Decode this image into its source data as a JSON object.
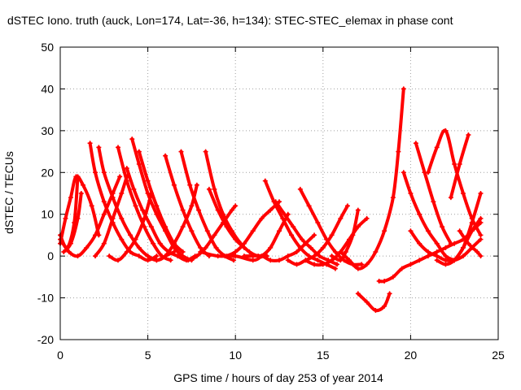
{
  "chart_data": {
    "type": "line",
    "title": "dSTEC Iono. truth (auck, Lon=174, Lat=-36, h=134): STEC-STEC_elemax in phase cont",
    "xlabel": "GPS time / hours of day 253 of year 2014",
    "ylabel": "dSTEC  / TECUs",
    "xlim": [
      0,
      25
    ],
    "ylim": [
      -20,
      50
    ],
    "xticks": [
      0,
      5,
      10,
      15,
      20,
      25
    ],
    "yticks": [
      -20,
      -10,
      0,
      10,
      20,
      30,
      40,
      50
    ],
    "grid": true,
    "legend": "none",
    "color": "#ff0000",
    "series": [
      {
        "x": [
          0.0,
          0.4,
          0.8,
          1.0
        ],
        "y": [
          5,
          2,
          8,
          19
        ]
      },
      {
        "x": [
          0.0,
          0.3,
          0.6,
          0.9,
          1.3,
          1.8,
          2.2
        ],
        "y": [
          3,
          9,
          14,
          19,
          17,
          12,
          5
        ]
      },
      {
        "x": [
          0.0,
          0.5,
          1.0,
          1.5,
          2.0,
          2.5,
          3.0,
          3.4
        ],
        "y": [
          4,
          1,
          0,
          2,
          5,
          10,
          15,
          19
        ]
      },
      {
        "x": [
          0.2,
          0.6,
          1.0,
          1.2
        ],
        "y": [
          1,
          3,
          9,
          15
        ]
      },
      {
        "x": [
          1.7,
          2.0,
          2.5,
          3.0,
          3.5,
          4.0,
          4.5,
          5.0,
          5.5
        ],
        "y": [
          27,
          20,
          13,
          8,
          4,
          1,
          0,
          -1,
          0
        ]
      },
      {
        "x": [
          2.2,
          2.5,
          3.0,
          3.5,
          4.0,
          4.5,
          5.0,
          5.5,
          6.0,
          6.5
        ],
        "y": [
          26,
          20,
          14,
          9,
          5,
          2,
          0,
          -1,
          0,
          1
        ]
      },
      {
        "x": [
          2.0,
          2.5,
          3.0,
          3.5,
          3.8
        ],
        "y": [
          0,
          3,
          9,
          15,
          19
        ]
      },
      {
        "x": [
          3.3,
          3.8,
          4.3,
          4.8,
          5.3,
          5.8,
          6.3
        ],
        "y": [
          26,
          18,
          12,
          7,
          3,
          0,
          -1
        ]
      },
      {
        "x": [
          3.8,
          4.2,
          4.7,
          5.2,
          5.7,
          6.2,
          6.7,
          7.2,
          7.7
        ],
        "y": [
          21,
          16,
          11,
          7,
          3,
          1,
          0,
          -1,
          0
        ]
      },
      {
        "x": [
          4.1,
          4.5,
          5.0,
          5.5,
          6.0,
          6.5,
          7.0,
          7.5
        ],
        "y": [
          28,
          22,
          15,
          10,
          6,
          2,
          0,
          -1
        ]
      },
      {
        "x": [
          4.5,
          5.0,
          5.5,
          6.0,
          6.5,
          7.0
        ],
        "y": [
          25,
          18,
          12,
          7,
          3,
          1
        ]
      },
      {
        "x": [
          2.8,
          3.3,
          3.8,
          4.3,
          4.8,
          5.2
        ],
        "y": [
          0,
          -1,
          1,
          4,
          9,
          15
        ]
      },
      {
        "x": [
          6.0,
          6.5,
          7.0,
          7.5,
          8.0,
          8.5
        ],
        "y": [
          24,
          17,
          11,
          6,
          2,
          0
        ]
      },
      {
        "x": [
          6.9,
          7.4,
          7.9,
          8.4,
          8.9,
          9.4,
          9.9
        ],
        "y": [
          25,
          17,
          11,
          6,
          2,
          0,
          -1
        ]
      },
      {
        "x": [
          5.0,
          5.5,
          6.0,
          6.5,
          7.0,
          7.5,
          7.8
        ],
        "y": [
          0,
          -1,
          0,
          3,
          7,
          12,
          17
        ]
      },
      {
        "x": [
          8.3,
          8.8,
          9.3,
          9.8,
          10.3,
          10.8,
          11.3,
          11.8
        ],
        "y": [
          25,
          16,
          10,
          6,
          3,
          1,
          0,
          0
        ]
      },
      {
        "x": [
          8.5,
          9.0,
          9.5,
          10.0,
          10.5
        ],
        "y": [
          16,
          11,
          7,
          4,
          2
        ]
      },
      {
        "x": [
          6.8,
          7.3,
          7.8,
          8.3,
          8.8,
          9.3,
          9.8,
          10.0
        ],
        "y": [
          0,
          -1,
          0,
          2,
          5,
          8,
          11,
          12
        ]
      },
      {
        "x": [
          8.0,
          9.0,
          10.0,
          11.0,
          11.5,
          12.0,
          12.5,
          13.0
        ],
        "y": [
          1,
          0,
          0,
          -1,
          0,
          2,
          6,
          10
        ]
      },
      {
        "x": [
          9.5,
          10.0,
          10.5,
          11.0,
          11.5,
          12.0,
          12.5
        ],
        "y": [
          0,
          1,
          3,
          6,
          9,
          11,
          13
        ]
      },
      {
        "x": [
          11.7,
          12.2,
          12.7,
          13.2,
          13.7,
          14.2,
          14.7,
          15.2,
          15.7
        ],
        "y": [
          18,
          13,
          9,
          5,
          2,
          0,
          -1,
          -2,
          -3
        ]
      },
      {
        "x": [
          12.3,
          12.8,
          13.3,
          13.8,
          14.3,
          14.8,
          15.3,
          15.8
        ],
        "y": [
          13,
          10,
          7,
          4,
          2,
          0,
          -1,
          -2
        ]
      },
      {
        "x": [
          13.7,
          14.2,
          14.7,
          15.2,
          15.7,
          16.2,
          16.7,
          17.2
        ],
        "y": [
          16,
          12,
          8,
          4,
          1,
          -1,
          -2,
          -2
        ]
      },
      {
        "x": [
          10.5,
          11.0,
          11.5,
          12.0,
          12.5,
          13.0,
          13.5,
          14.0,
          14.5
        ],
        "y": [
          0,
          0,
          0,
          -1,
          -1,
          0,
          1,
          3,
          5
        ]
      },
      {
        "x": [
          13.0,
          13.5,
          14.0,
          14.5,
          15.0,
          15.5,
          16.0,
          16.4
        ],
        "y": [
          -1,
          -2,
          -1,
          0,
          2,
          5,
          9,
          12
        ]
      },
      {
        "x": [
          14.0,
          14.5,
          15.0,
          15.5,
          16.0,
          16.5,
          17.0,
          17.5
        ],
        "y": [
          -1,
          -2,
          -2,
          -1,
          1,
          4,
          7,
          9
        ]
      },
      {
        "x": [
          15.5,
          16.0,
          16.3,
          16.7,
          17.0
        ],
        "y": [
          0,
          -1,
          1,
          5,
          11
        ]
      },
      {
        "x": [
          16.0,
          16.5,
          17.0,
          17.5,
          18.0,
          18.5,
          19.0,
          19.3,
          19.6
        ],
        "y": [
          1,
          -1,
          -3,
          -2,
          1,
          6,
          14,
          25,
          40
        ]
      },
      {
        "x": [
          17.0,
          17.5,
          18.0,
          18.5,
          18.8
        ],
        "y": [
          -9,
          -11,
          -13,
          -12,
          -9
        ]
      },
      {
        "x": [
          18.2,
          18.5,
          19.0,
          19.5,
          20.0,
          20.5,
          21.0,
          21.5,
          22.0,
          22.5,
          23.0,
          23.5,
          24.0
        ],
        "y": [
          -6,
          -6,
          -5,
          -3,
          -2,
          -1,
          0,
          1,
          2,
          3,
          4,
          6,
          8
        ]
      },
      {
        "x": [
          19.6,
          20.0,
          20.5,
          21.0,
          21.5,
          22.0,
          22.5
        ],
        "y": [
          20,
          15,
          10,
          6,
          3,
          0,
          -1
        ]
      },
      {
        "x": [
          20.3,
          20.8,
          21.3,
          21.8,
          22.3
        ],
        "y": [
          27,
          20,
          13,
          7,
          3
        ]
      },
      {
        "x": [
          20.0,
          20.5,
          21.0,
          21.5,
          22.0,
          22.5,
          23.0,
          23.5,
          24.0
        ],
        "y": [
          6,
          3,
          1,
          0,
          -1,
          -1,
          0,
          2,
          4
        ]
      },
      {
        "x": [
          21.0,
          21.5,
          22.0,
          22.5,
          23.0,
          23.5,
          24.0
        ],
        "y": [
          20,
          26,
          30,
          22,
          15,
          9,
          5
        ]
      },
      {
        "x": [
          22.5,
          23.0,
          23.5,
          24.0
        ],
        "y": [
          -1,
          2,
          8,
          15
        ]
      },
      {
        "x": [
          22.3,
          22.8,
          23.3
        ],
        "y": [
          14,
          22,
          29
        ]
      },
      {
        "x": [
          22.8,
          23.3,
          23.8,
          24.0
        ],
        "y": [
          6,
          3,
          1,
          0
        ]
      },
      {
        "x": [
          21.5,
          22.0,
          22.5,
          23.0,
          23.5,
          24.0
        ],
        "y": [
          -1,
          -2,
          -1,
          2,
          6,
          9
        ]
      }
    ]
  }
}
